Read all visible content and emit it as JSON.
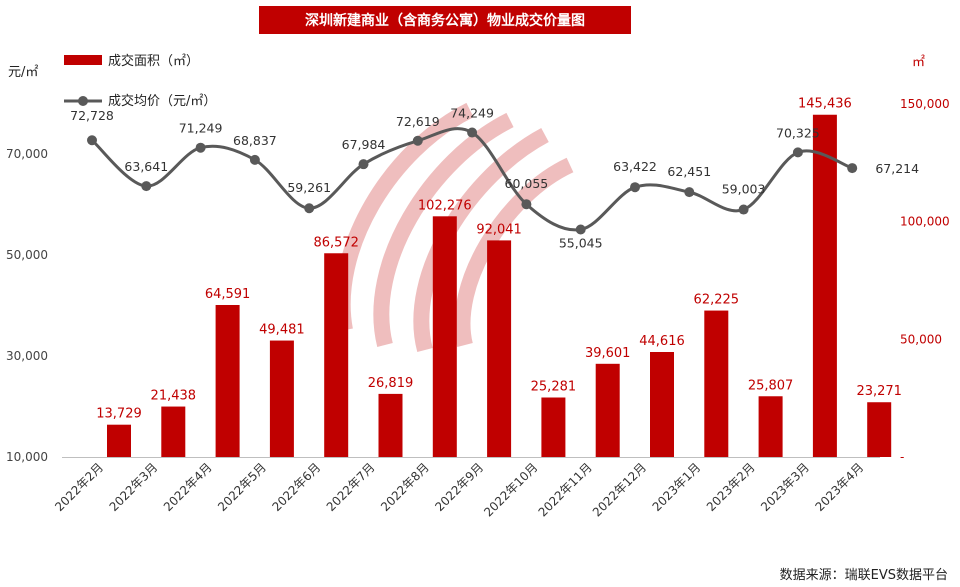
{
  "chart_data": {
    "type": "bar+line",
    "title": "深圳新建商业（含商务公寓）物业成交价量图",
    "categories": [
      "2022年2月",
      "2022年3月",
      "2022年4月",
      "2022年5月",
      "2022年6月",
      "2022年7月",
      "2022年8月",
      "2022年9月",
      "2022年10月",
      "2022年11月",
      "2022年12月",
      "2023年1月",
      "2023年2月",
      "2023年3月",
      "2023年4月"
    ],
    "series": [
      {
        "name": "成交面积（㎡）",
        "type": "bar",
        "axis": "right",
        "color": "#c00000",
        "values": [
          13729,
          21438,
          64591,
          49481,
          86572,
          26819,
          102276,
          92041,
          25281,
          39601,
          44616,
          62225,
          25807,
          145436,
          23271
        ],
        "labels": [
          "13,729",
          "21,438",
          "64,591",
          "49,481",
          "86,572",
          "26,819",
          "102,276",
          "92,041",
          "25,281",
          "39,601",
          "44,616",
          "62,225",
          "25,807",
          "145,436",
          "23,271"
        ]
      },
      {
        "name": "成交均价（元/㎡）",
        "type": "line",
        "axis": "left",
        "color": "#595959",
        "values": [
          72728,
          63641,
          71249,
          68837,
          59261,
          67984,
          72619,
          74249,
          60055,
          55045,
          63422,
          62451,
          59003,
          70325,
          67214
        ],
        "labels": [
          "72,728",
          "63,641",
          "71,249",
          "68,837",
          "59,261",
          "67,984",
          "72,619",
          "74,249",
          "60,055",
          "55,045",
          "63,422",
          "62,451",
          "59,003",
          "70,325",
          "67,214"
        ]
      }
    ],
    "left_axis": {
      "unit": "元/㎡",
      "ticks": [
        "10,000",
        "30,000",
        "50,000",
        "70,000"
      ]
    },
    "right_axis": {
      "unit": "㎡",
      "ticks": [
        "-",
        "50,000",
        "100,000",
        "150,000"
      ]
    },
    "legend_position": "top-left",
    "grid": false
  },
  "source_text": "数据来源：瑞联EVS数据平台"
}
